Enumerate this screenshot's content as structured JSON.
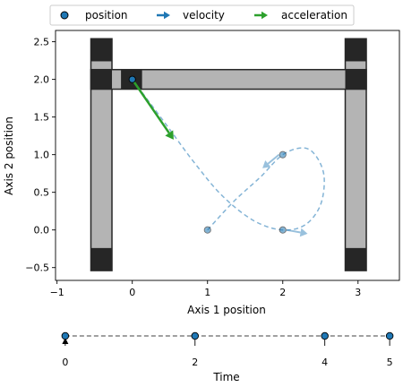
{
  "chart_data": [
    {
      "type": "scatter",
      "xlabel": "Axis 1 position",
      "ylabel": "Axis 2 position",
      "xlim": [
        -1.02,
        3.55
      ],
      "ylim": [
        -0.67,
        2.65
      ],
      "x_ticks": [
        -1,
        0,
        1,
        2,
        3
      ],
      "y_ticks": [
        -0.5,
        0.0,
        0.5,
        1.0,
        1.5,
        2.0,
        2.5
      ],
      "x_tick_labels": [
        "−1",
        "0",
        "1",
        "2",
        "3"
      ],
      "y_tick_labels": [
        "−0.5",
        "0.0",
        "0.5",
        "1.0",
        "1.5",
        "2.0",
        "2.5"
      ],
      "grid": false,
      "legend": {
        "placement": "top",
        "entries": [
          {
            "label": "position",
            "marker": "circle"
          },
          {
            "label": "velocity",
            "marker": "arrow"
          },
          {
            "label": "acceleration",
            "marker": "arrow"
          }
        ]
      },
      "colors": {
        "position": "#1f77b4",
        "velocity": "#1f77b4",
        "acceleration": "#2ca02c",
        "frame_dark": "#262626",
        "frame_light": "#b4b4b4"
      },
      "gantry": {
        "left_rail_x": [
          -0.55,
          -0.27
        ],
        "right_rail_x": [
          2.83,
          3.11
        ],
        "rails_y": [
          -0.54,
          2.54
        ],
        "rail_end_caps_height": 0.3,
        "bridge_y": [
          1.87,
          2.13
        ],
        "bridge_x": [
          -0.55,
          3.11
        ],
        "carriage_x": [
          -0.15,
          0.13
        ]
      },
      "path": [
        [
          1.0,
          0.0
        ],
        [
          1.35,
          0.38
        ],
        [
          1.7,
          0.7
        ],
        [
          2.0,
          1.0
        ],
        [
          2.28,
          1.09
        ],
        [
          2.45,
          0.97
        ],
        [
          2.55,
          0.7
        ],
        [
          2.5,
          0.33
        ],
        [
          2.3,
          0.07
        ],
        [
          2.0,
          0.0
        ],
        [
          1.62,
          0.12
        ],
        [
          1.2,
          0.45
        ],
        [
          0.82,
          0.9
        ],
        [
          0.45,
          1.4
        ],
        [
          0.0,
          2.0
        ]
      ],
      "positions": [
        {
          "x": 0.0,
          "y": 2.0,
          "highlight": true
        },
        {
          "x": 2.0,
          "y": 1.0
        },
        {
          "x": 2.0,
          "y": 0.0
        },
        {
          "x": 1.0,
          "y": 0.0
        }
      ],
      "velocity_arrows": [
        {
          "x": 1.95,
          "y": 1.0,
          "dx": -0.22,
          "dy": -0.18
        },
        {
          "x": 2.05,
          "y": 0.0,
          "dx": 0.28,
          "dy": -0.05
        }
      ],
      "acceleration_arrows": [
        {
          "x": 0.0,
          "y": 2.0,
          "dx": 0.55,
          "dy": -0.8
        }
      ]
    },
    {
      "type": "line",
      "xlabel": "Time",
      "xlim": [
        -0.15,
        5.15
      ],
      "x_ticks": [
        0,
        2,
        4,
        5
      ],
      "x_tick_labels": [
        "0",
        "2",
        "4",
        "5"
      ],
      "keyframes": [
        0,
        2,
        4,
        5
      ],
      "current_time": 0
    }
  ]
}
